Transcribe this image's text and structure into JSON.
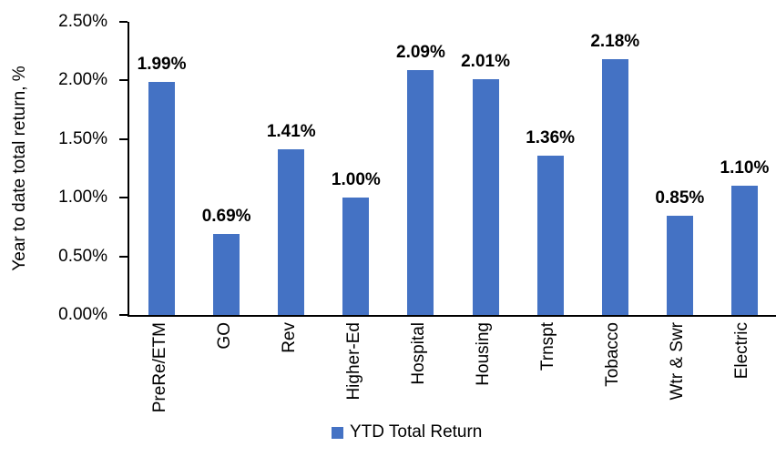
{
  "chart_data": {
    "type": "bar",
    "title": "",
    "categories": [
      "PreRe/ETM",
      "GO",
      "Rev",
      "Higher-Ed",
      "Hospital",
      "Housing",
      "Trnspt",
      "Tobacco",
      "Wtr & Swr",
      "Electric"
    ],
    "series": [
      {
        "name": "YTD Total Return",
        "values": [
          1.99,
          0.69,
          1.41,
          1.0,
          2.09,
          2.01,
          1.36,
          2.18,
          0.85,
          1.1
        ]
      }
    ],
    "data_labels": [
      "1.99%",
      "0.69%",
      "1.41%",
      "1.00%",
      "2.09%",
      "2.01%",
      "1.36%",
      "2.18%",
      "0.85%",
      "1.10%"
    ],
    "xlabel": "",
    "ylabel": "Year to date total return, %",
    "ylim": [
      0,
      2.5
    ],
    "ytick_labels": [
      "0.00%",
      "0.50%",
      "1.00%",
      "1.50%",
      "2.00%",
      "2.50%"
    ],
    "grid": false,
    "legend": {
      "label": "YTD Total Return",
      "position": "bottom"
    },
    "colors": {
      "bar": "#4472C4",
      "axis": "#000000",
      "text": "#000000",
      "background": "#FFFFFF"
    }
  }
}
